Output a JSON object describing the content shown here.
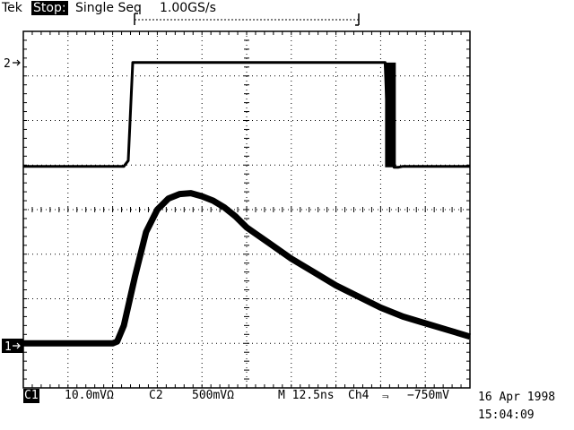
{
  "header": {
    "brand": "Tek",
    "run_state": "Stop:",
    "acquisition_mode": "Single Seq",
    "sample_rate": "1.00GS/s"
  },
  "channels": [
    {
      "marker": "2",
      "name": "C2"
    },
    {
      "marker": "1",
      "name": "C1"
    }
  ],
  "status": {
    "ch1_label": "C1",
    "ch1_scale": "10.0mVΩ",
    "ch2_label": "C2",
    "ch2_scale": "500mVΩ",
    "timebase": "M 12.5ns",
    "trigger_source": "Ch4",
    "trigger_slope": "⫬",
    "trigger_level": "−750mV"
  },
  "datetime": {
    "date": "16 Apr 1998",
    "time": "15:04:09"
  },
  "chart_data": {
    "type": "line",
    "grid": true,
    "x_divisions": 10,
    "y_divisions": 8,
    "series": [
      {
        "name": "C2",
        "x_div": [
          0,
          2.25,
          2.35,
          2.45,
          2.5,
          2.6,
          8.1,
          8.15,
          8.3,
          8.4,
          8.5,
          10
        ],
        "y_div": [
          4.97,
          4.97,
          5.1,
          7.3,
          7.3,
          7.3,
          7.3,
          6.0,
          4.95,
          4.95,
          4.97,
          4.97
        ]
      },
      {
        "name": "C1",
        "x_div": [
          0,
          2.0,
          2.1,
          2.25,
          2.5,
          2.75,
          3.0,
          3.25,
          3.5,
          3.75,
          4.0,
          4.25,
          4.5,
          4.75,
          5.0,
          5.5,
          6.0,
          6.5,
          7.0,
          7.5,
          8.0,
          8.5,
          9.0,
          9.5,
          10
        ],
        "y_div": [
          1.0,
          1.0,
          1.04,
          1.4,
          2.5,
          3.5,
          4.0,
          4.25,
          4.35,
          4.37,
          4.3,
          4.2,
          4.05,
          3.85,
          3.6,
          3.25,
          2.9,
          2.6,
          2.3,
          2.05,
          1.8,
          1.6,
          1.45,
          1.3,
          1.15
        ]
      }
    ]
  }
}
